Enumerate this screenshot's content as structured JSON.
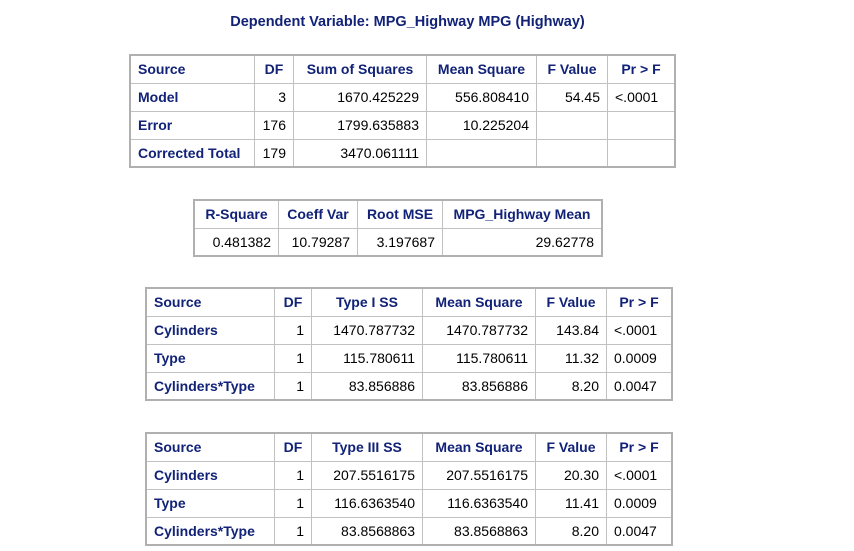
{
  "title": "Dependent Variable: MPG_Highway MPG (Highway)",
  "anova": {
    "headers": [
      "Source",
      "DF",
      "Sum of Squares",
      "Mean Square",
      "F Value",
      "Pr > F"
    ],
    "rows": [
      [
        "Model",
        "3",
        "1670.425229",
        "556.808410",
        "54.45",
        "<.0001"
      ],
      [
        "Error",
        "176",
        "1799.635883",
        "10.225204",
        "",
        ""
      ],
      [
        "Corrected Total",
        "179",
        "3470.061111",
        "",
        "",
        ""
      ]
    ]
  },
  "fit": {
    "headers": [
      "R-Square",
      "Coeff Var",
      "Root MSE",
      "MPG_Highway Mean"
    ],
    "row": [
      "0.481382",
      "10.79287",
      "3.197687",
      "29.62778"
    ]
  },
  "type1": {
    "headers": [
      "Source",
      "DF",
      "Type I SS",
      "Mean Square",
      "F Value",
      "Pr > F"
    ],
    "rows": [
      [
        "Cylinders",
        "1",
        "1470.787732",
        "1470.787732",
        "143.84",
        "<.0001"
      ],
      [
        "Type",
        "1",
        "115.780611",
        "115.780611",
        "11.32",
        "0.0009"
      ],
      [
        "Cylinders*Type",
        "1",
        "83.856886",
        "83.856886",
        "8.20",
        "0.0047"
      ]
    ]
  },
  "type3": {
    "headers": [
      "Source",
      "DF",
      "Type III SS",
      "Mean Square",
      "F Value",
      "Pr > F"
    ],
    "rows": [
      [
        "Cylinders",
        "1",
        "207.5516175",
        "207.5516175",
        "20.30",
        "<.0001"
      ],
      [
        "Type",
        "1",
        "116.6363540",
        "116.6363540",
        "11.41",
        "0.0009"
      ],
      [
        "Cylinders*Type",
        "1",
        "83.8568863",
        "83.8568863",
        "8.20",
        "0.0047"
      ]
    ]
  },
  "colors": {
    "header_text": "#112277",
    "border": "#c1c1c1"
  }
}
